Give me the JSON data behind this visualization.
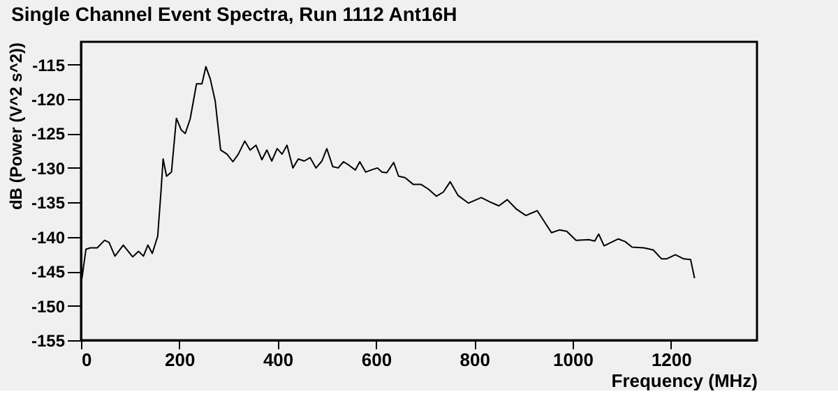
{
  "chart_data": {
    "type": "line",
    "title": "Single Channel Event Spectra, Run 1112 Ant16H",
    "xlabel": "Frequency (MHz)",
    "ylabel": "dB (Power (V^2 s^2))",
    "xlim": [
      0,
      1375
    ],
    "ylim": [
      -155,
      -111.7
    ],
    "xticks": [
      0,
      200,
      400,
      600,
      800,
      1000,
      1200
    ],
    "yticks": [
      -155,
      -150,
      -145,
      -140,
      -135,
      -130,
      -125,
      -120,
      -115
    ],
    "grid": false,
    "marker": "none",
    "line_style": "solid",
    "series": [
      {
        "color": "#000000",
        "x": [
          2,
          10,
          19,
          33,
          48,
          57,
          69,
          86,
          105,
          117,
          127,
          136,
          145,
          156,
          163,
          167,
          174,
          184,
          194,
          204,
          212,
          222,
          235,
          246,
          254,
          263,
          273,
          284,
          297,
          309,
          320,
          333,
          344,
          356,
          368,
          378,
          388,
          399,
          409,
          419,
          431,
          442,
          454,
          466,
          478,
          490,
          500,
          512,
          523,
          534,
          545,
          558,
          567,
          579,
          590,
          603,
          612,
          622,
          636,
          646,
          659,
          676,
          692,
          707,
          723,
          737,
          751,
          767,
          788,
          814,
          831,
          850,
          867,
          886,
          905,
          928,
          957,
          973,
          988,
          1007,
          1033,
          1045,
          1053,
          1064,
          1093,
          1107,
          1121,
          1145,
          1164,
          1181,
          1191,
          1209,
          1226,
          1240,
          1248
        ],
        "values": [
          -146,
          -141.8,
          -141.6,
          -141.6,
          -140.5,
          -140.8,
          -142.8,
          -141.2,
          -142.9,
          -142.1,
          -142.8,
          -141.2,
          -142.4,
          -139.9,
          -133.1,
          -128.7,
          -131.2,
          -130.6,
          -122.8,
          -124.5,
          -125,
          -122.9,
          -117.8,
          -117.8,
          -115.3,
          -117.1,
          -120.3,
          -127.4,
          -128,
          -129.1,
          -128,
          -126.1,
          -127.4,
          -126.7,
          -128.8,
          -127.4,
          -129,
          -127.2,
          -128,
          -126.7,
          -130,
          -128.7,
          -129,
          -128.5,
          -130,
          -129,
          -127.2,
          -129.8,
          -130,
          -129.1,
          -129.6,
          -130.3,
          -129.1,
          -130.6,
          -130.3,
          -130,
          -130.6,
          -130.7,
          -129.2,
          -131.2,
          -131.4,
          -132.4,
          -132.4,
          -133.1,
          -134.1,
          -133.5,
          -132,
          -134,
          -135.1,
          -134.3,
          -134.9,
          -135.5,
          -134.6,
          -136,
          -136.9,
          -136.2,
          -139.4,
          -139,
          -139.2,
          -140.5,
          -140.4,
          -140.6,
          -139.6,
          -141.3,
          -140.3,
          -140.7,
          -141.5,
          -141.6,
          -141.9,
          -143.2,
          -143.2,
          -142.6,
          -143.2,
          -143.3,
          -146
        ]
      }
    ]
  }
}
